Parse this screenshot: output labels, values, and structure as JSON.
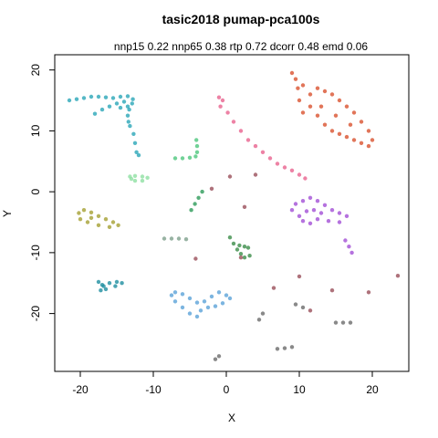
{
  "chart_data": {
    "type": "scatter",
    "title": "tasic2018 pumap-pca100s",
    "subtitle": "nnp15 0.22 nnp65 0.38 rtp 0.72 dcorr 0.48 emd 0.06",
    "xlabel": "X",
    "ylabel": "Y",
    "xlim": [
      -23.5,
      25
    ],
    "ylim": [
      -29.5,
      22.5
    ],
    "xticks": [
      -20,
      -10,
      0,
      10,
      20
    ],
    "yticks": [
      -20,
      -10,
      0,
      10,
      20
    ],
    "xtick_labels": [
      "-20",
      "-10",
      "0",
      "10",
      "20"
    ],
    "ytick_labels": [
      "-20",
      "-10",
      "0",
      "10",
      "20"
    ],
    "grid": false,
    "legend": "none",
    "clusters": [
      {
        "label": "cyan-wing",
        "color": "#2aa6b8",
        "points": [
          [
            -21.5,
            15.0
          ],
          [
            -20.5,
            15.2
          ],
          [
            -19.5,
            15.4
          ],
          [
            -18.5,
            15.6
          ],
          [
            -17.5,
            15.6
          ],
          [
            -16.5,
            15.5
          ],
          [
            -15.5,
            15.4
          ],
          [
            -14.5,
            15.6
          ],
          [
            -13.5,
            15.7
          ],
          [
            -12.8,
            15.2
          ],
          [
            -12.9,
            14.5
          ],
          [
            -13.3,
            13.5
          ],
          [
            -13.5,
            12.5
          ],
          [
            -13.4,
            11.5
          ],
          [
            -13.2,
            10.8
          ],
          [
            -14.0,
            14.8
          ],
          [
            -15.0,
            14.5
          ],
          [
            -16.0,
            14.0
          ],
          [
            -17.0,
            13.5
          ],
          [
            -18.0,
            12.8
          ],
          [
            -13.5,
            14.0
          ],
          [
            -14.5,
            13.8
          ],
          [
            -12.7,
            9.5
          ],
          [
            -12.5,
            8.0
          ],
          [
            -12.3,
            6.5
          ],
          [
            -12.0,
            6.0
          ]
        ]
      },
      {
        "label": "pink-magenta-streak",
        "color": "#e8638f",
        "points": [
          [
            -1.0,
            15.5
          ],
          [
            -0.5,
            15.0
          ],
          [
            -0.8,
            14.0
          ],
          [
            0.2,
            13.0
          ],
          [
            1.0,
            11.5
          ],
          [
            2.0,
            10.0
          ],
          [
            3.0,
            8.5
          ],
          [
            4.0,
            7.5
          ],
          [
            5.0,
            6.5
          ],
          [
            6.0,
            5.5
          ],
          [
            7.0,
            4.6
          ],
          [
            8.0,
            4.0
          ],
          [
            9.0,
            3.5
          ],
          [
            10.0,
            2.8
          ],
          [
            10.8,
            2.2
          ]
        ]
      },
      {
        "label": "orange-red-region",
        "color": "#d9532f",
        "points": [
          [
            9.0,
            19.5
          ],
          [
            9.5,
            18.5
          ],
          [
            10.5,
            17.5
          ],
          [
            11.5,
            16.0
          ],
          [
            12.5,
            17.0
          ],
          [
            13.5,
            16.5
          ],
          [
            14.5,
            16.0
          ],
          [
            15.5,
            15.0
          ],
          [
            16.5,
            14.0
          ],
          [
            17.5,
            13.0
          ],
          [
            18.5,
            11.5
          ],
          [
            19.5,
            10.0
          ],
          [
            20.0,
            8.5
          ],
          [
            19.5,
            7.5
          ],
          [
            18.5,
            8.0
          ],
          [
            17.5,
            8.5
          ],
          [
            16.5,
            9.0
          ],
          [
            15.5,
            9.5
          ],
          [
            14.5,
            10.0
          ],
          [
            13.5,
            11.0
          ],
          [
            12.5,
            12.5
          ],
          [
            11.5,
            14.0
          ],
          [
            10.5,
            13.0
          ],
          [
            10.0,
            15.0
          ],
          [
            9.8,
            17.0
          ],
          [
            17.0,
            11.0
          ],
          [
            15.0,
            12.5
          ],
          [
            13.0,
            14.0
          ]
        ]
      },
      {
        "label": "purple-blob",
        "color": "#a24fd6",
        "points": [
          [
            9.0,
            -3.0
          ],
          [
            9.5,
            -2.0
          ],
          [
            10.5,
            -1.5
          ],
          [
            11.5,
            -1.0
          ],
          [
            12.5,
            -1.5
          ],
          [
            13.5,
            -2.2
          ],
          [
            14.5,
            -3.0
          ],
          [
            15.5,
            -3.5
          ],
          [
            16.5,
            -4.0
          ],
          [
            15.5,
            -5.0
          ],
          [
            14.0,
            -4.8
          ],
          [
            12.5,
            -4.5
          ],
          [
            11.5,
            -5.2
          ],
          [
            10.5,
            -4.8
          ],
          [
            10.0,
            -4.0
          ],
          [
            11.0,
            -3.2
          ],
          [
            12.0,
            -3.0
          ],
          [
            13.0,
            -3.5
          ],
          [
            16.3,
            -8.0
          ],
          [
            16.8,
            -9.0
          ],
          [
            17.2,
            -10.0
          ]
        ]
      },
      {
        "label": "olive-blob",
        "color": "#a5a033",
        "points": [
          [
            -20.2,
            -3.5
          ],
          [
            -19.5,
            -3.0
          ],
          [
            -18.5,
            -3.4
          ],
          [
            -17.5,
            -4.0
          ],
          [
            -16.5,
            -4.5
          ],
          [
            -15.5,
            -5.0
          ],
          [
            -14.8,
            -5.5
          ],
          [
            -16.0,
            -5.8
          ],
          [
            -17.5,
            -5.5
          ],
          [
            -19.0,
            -5.0
          ],
          [
            -20.0,
            -4.5
          ],
          [
            -18.5,
            -4.3
          ]
        ]
      },
      {
        "label": "green-l-shape",
        "color": "#4ec77d",
        "points": [
          [
            -7.0,
            5.5
          ],
          [
            -6.0,
            5.5
          ],
          [
            -5.0,
            5.6
          ],
          [
            -4.2,
            5.8
          ],
          [
            -4.0,
            6.5
          ],
          [
            -4.0,
            7.5
          ],
          [
            -4.1,
            8.5
          ]
        ]
      },
      {
        "label": "light-green-blob",
        "color": "#8ee0a2",
        "points": [
          [
            -13.2,
            2.5
          ],
          [
            -12.5,
            2.6
          ],
          [
            -11.5,
            2.5
          ],
          [
            -10.8,
            2.3
          ],
          [
            -11.5,
            1.8
          ],
          [
            -12.5,
            1.8
          ],
          [
            -13.0,
            2.1
          ]
        ]
      },
      {
        "label": "teal-blob",
        "color": "#1f8fa0",
        "points": [
          [
            -17.5,
            -14.8
          ],
          [
            -16.8,
            -15.5
          ],
          [
            -16.0,
            -15.0
          ],
          [
            -15.0,
            -14.8
          ],
          [
            -14.3,
            -15.0
          ],
          [
            -15.2,
            -15.5
          ],
          [
            -16.5,
            -16.0
          ],
          [
            -17.2,
            -16.2
          ],
          [
            -17.0,
            -15.3
          ]
        ]
      },
      {
        "label": "blue-arc",
        "color": "#5ba2d8",
        "points": [
          [
            -7.5,
            -17.0
          ],
          [
            -7.0,
            -16.5
          ],
          [
            -6.0,
            -16.8
          ],
          [
            -5.0,
            -17.5
          ],
          [
            -4.0,
            -18.2
          ],
          [
            -3.0,
            -18.0
          ],
          [
            -2.0,
            -17.2
          ],
          [
            -1.0,
            -16.5
          ],
          [
            0.0,
            -17.0
          ],
          [
            0.5,
            -17.5
          ],
          [
            -0.5,
            -18.3
          ],
          [
            -1.5,
            -18.8
          ],
          [
            -2.5,
            -19.0
          ],
          [
            -3.5,
            -19.5
          ],
          [
            -4.0,
            -20.5
          ],
          [
            -5.0,
            -20.0
          ],
          [
            -6.0,
            -19.0
          ],
          [
            -7.0,
            -18.0
          ]
        ]
      },
      {
        "label": "dark-green-cluster",
        "color": "#3c8d4a",
        "points": [
          [
            0.5,
            -7.5
          ],
          [
            1.0,
            -8.5
          ],
          [
            1.5,
            -9.5
          ],
          [
            2.0,
            -10.2
          ],
          [
            2.5,
            -10.8
          ],
          [
            3.2,
            -10.5
          ],
          [
            3.0,
            -9.2
          ],
          [
            2.5,
            -9.0
          ],
          [
            1.8,
            -8.8
          ]
        ]
      },
      {
        "label": "green-segment",
        "color": "#2e9b5a",
        "points": [
          [
            -4.8,
            -3.0
          ],
          [
            -4.3,
            -2.0
          ],
          [
            -3.8,
            -1.0
          ],
          [
            -3.3,
            0.0
          ]
        ]
      },
      {
        "label": "gray-green-line",
        "color": "#7ea08c",
        "points": [
          [
            -8.5,
            -7.7
          ],
          [
            -7.5,
            -7.7
          ],
          [
            -6.5,
            -7.7
          ],
          [
            -5.5,
            -7.8
          ]
        ]
      },
      {
        "label": "lower-right-segments",
        "color": "#6b6b6b",
        "points": [
          [
            4.5,
            -21.0
          ],
          [
            5.0,
            -20.0
          ],
          [
            9.5,
            -18.5
          ],
          [
            10.5,
            -19.0
          ],
          [
            15.0,
            -21.5
          ],
          [
            16.0,
            -21.5
          ],
          [
            17.0,
            -21.5
          ],
          [
            7.0,
            -25.8
          ],
          [
            8.0,
            -25.7
          ],
          [
            9.0,
            -25.5
          ],
          [
            -1.5,
            -27.5
          ],
          [
            -1.0,
            -27.0
          ]
        ]
      },
      {
        "label": "scattered-specks",
        "color": "#9a4f5a",
        "points": [
          [
            0.5,
            2.5
          ],
          [
            4.0,
            2.8
          ],
          [
            2.5,
            -2.5
          ],
          [
            -2.0,
            0.5
          ],
          [
            -4.2,
            -11.0
          ],
          [
            6.5,
            -15.8
          ],
          [
            10.0,
            -13.9
          ],
          [
            14.5,
            -16.2
          ],
          [
            19.5,
            -16.5
          ],
          [
            23.5,
            -13.8
          ],
          [
            11.5,
            -19.5
          ],
          [
            2.0,
            -10.8
          ]
        ]
      }
    ]
  }
}
